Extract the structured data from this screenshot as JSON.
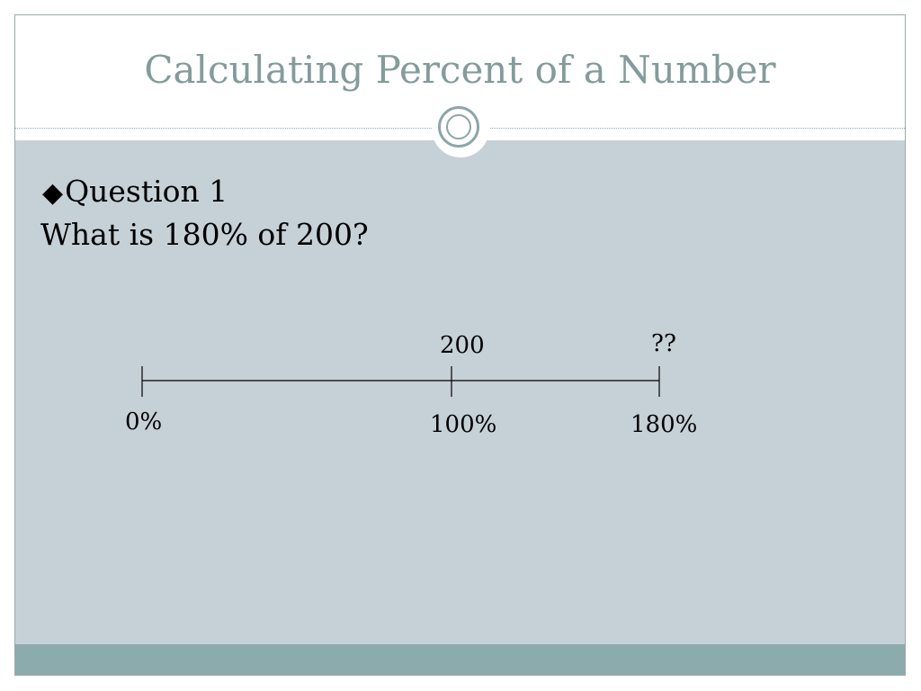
{
  "slide": {
    "title": "Calculating Percent of a Number",
    "bullet_marker": "◆",
    "bullet_text": "Question 1",
    "question": "What is 180% of 200?"
  },
  "number_line": {
    "top_labels": [
      "200",
      "??"
    ],
    "bottom_labels": [
      "0%",
      "100%",
      "180%"
    ]
  },
  "colors": {
    "title": "#849b9b",
    "content_bg": "#c6d1d7",
    "footer_band": "#8cabac"
  }
}
